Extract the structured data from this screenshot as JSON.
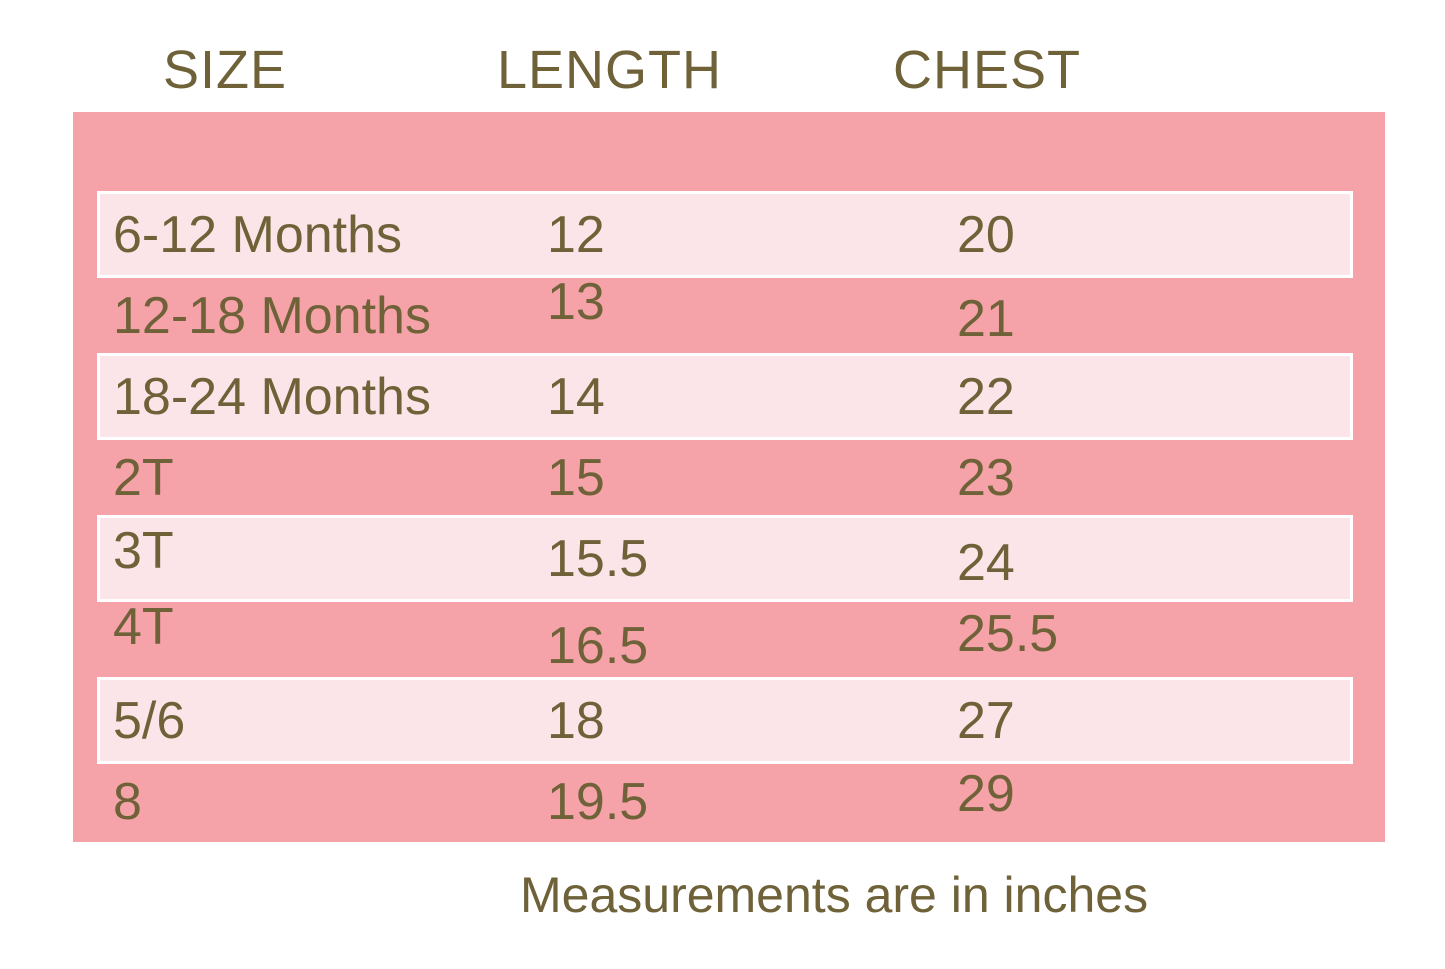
{
  "chart_data": {
    "type": "table",
    "columns": [
      "SIZE",
      "LENGTH",
      "CHEST"
    ],
    "rows": [
      [
        "6-12 Months",
        12,
        20
      ],
      [
        "12-18 Months",
        13,
        21
      ],
      [
        "18-24 Months",
        14,
        22
      ],
      [
        "2T",
        15,
        23
      ],
      [
        "3T",
        15.5,
        24
      ],
      [
        "4T",
        16.5,
        25.5
      ],
      [
        "5/6",
        18,
        27
      ],
      [
        "8",
        19.5,
        29
      ]
    ],
    "note": "Measurements are in inches",
    "units": "inches",
    "layout": "alternating light stripes on pink panel, headers above panel"
  },
  "colors": {
    "panel_pink": "#F6A2A9",
    "stripe_light_pink": "#FCE5E8",
    "stripe_outline": "#FFFFFF",
    "text_olive": "#6F6239",
    "page_background": "#FFFFFF"
  }
}
